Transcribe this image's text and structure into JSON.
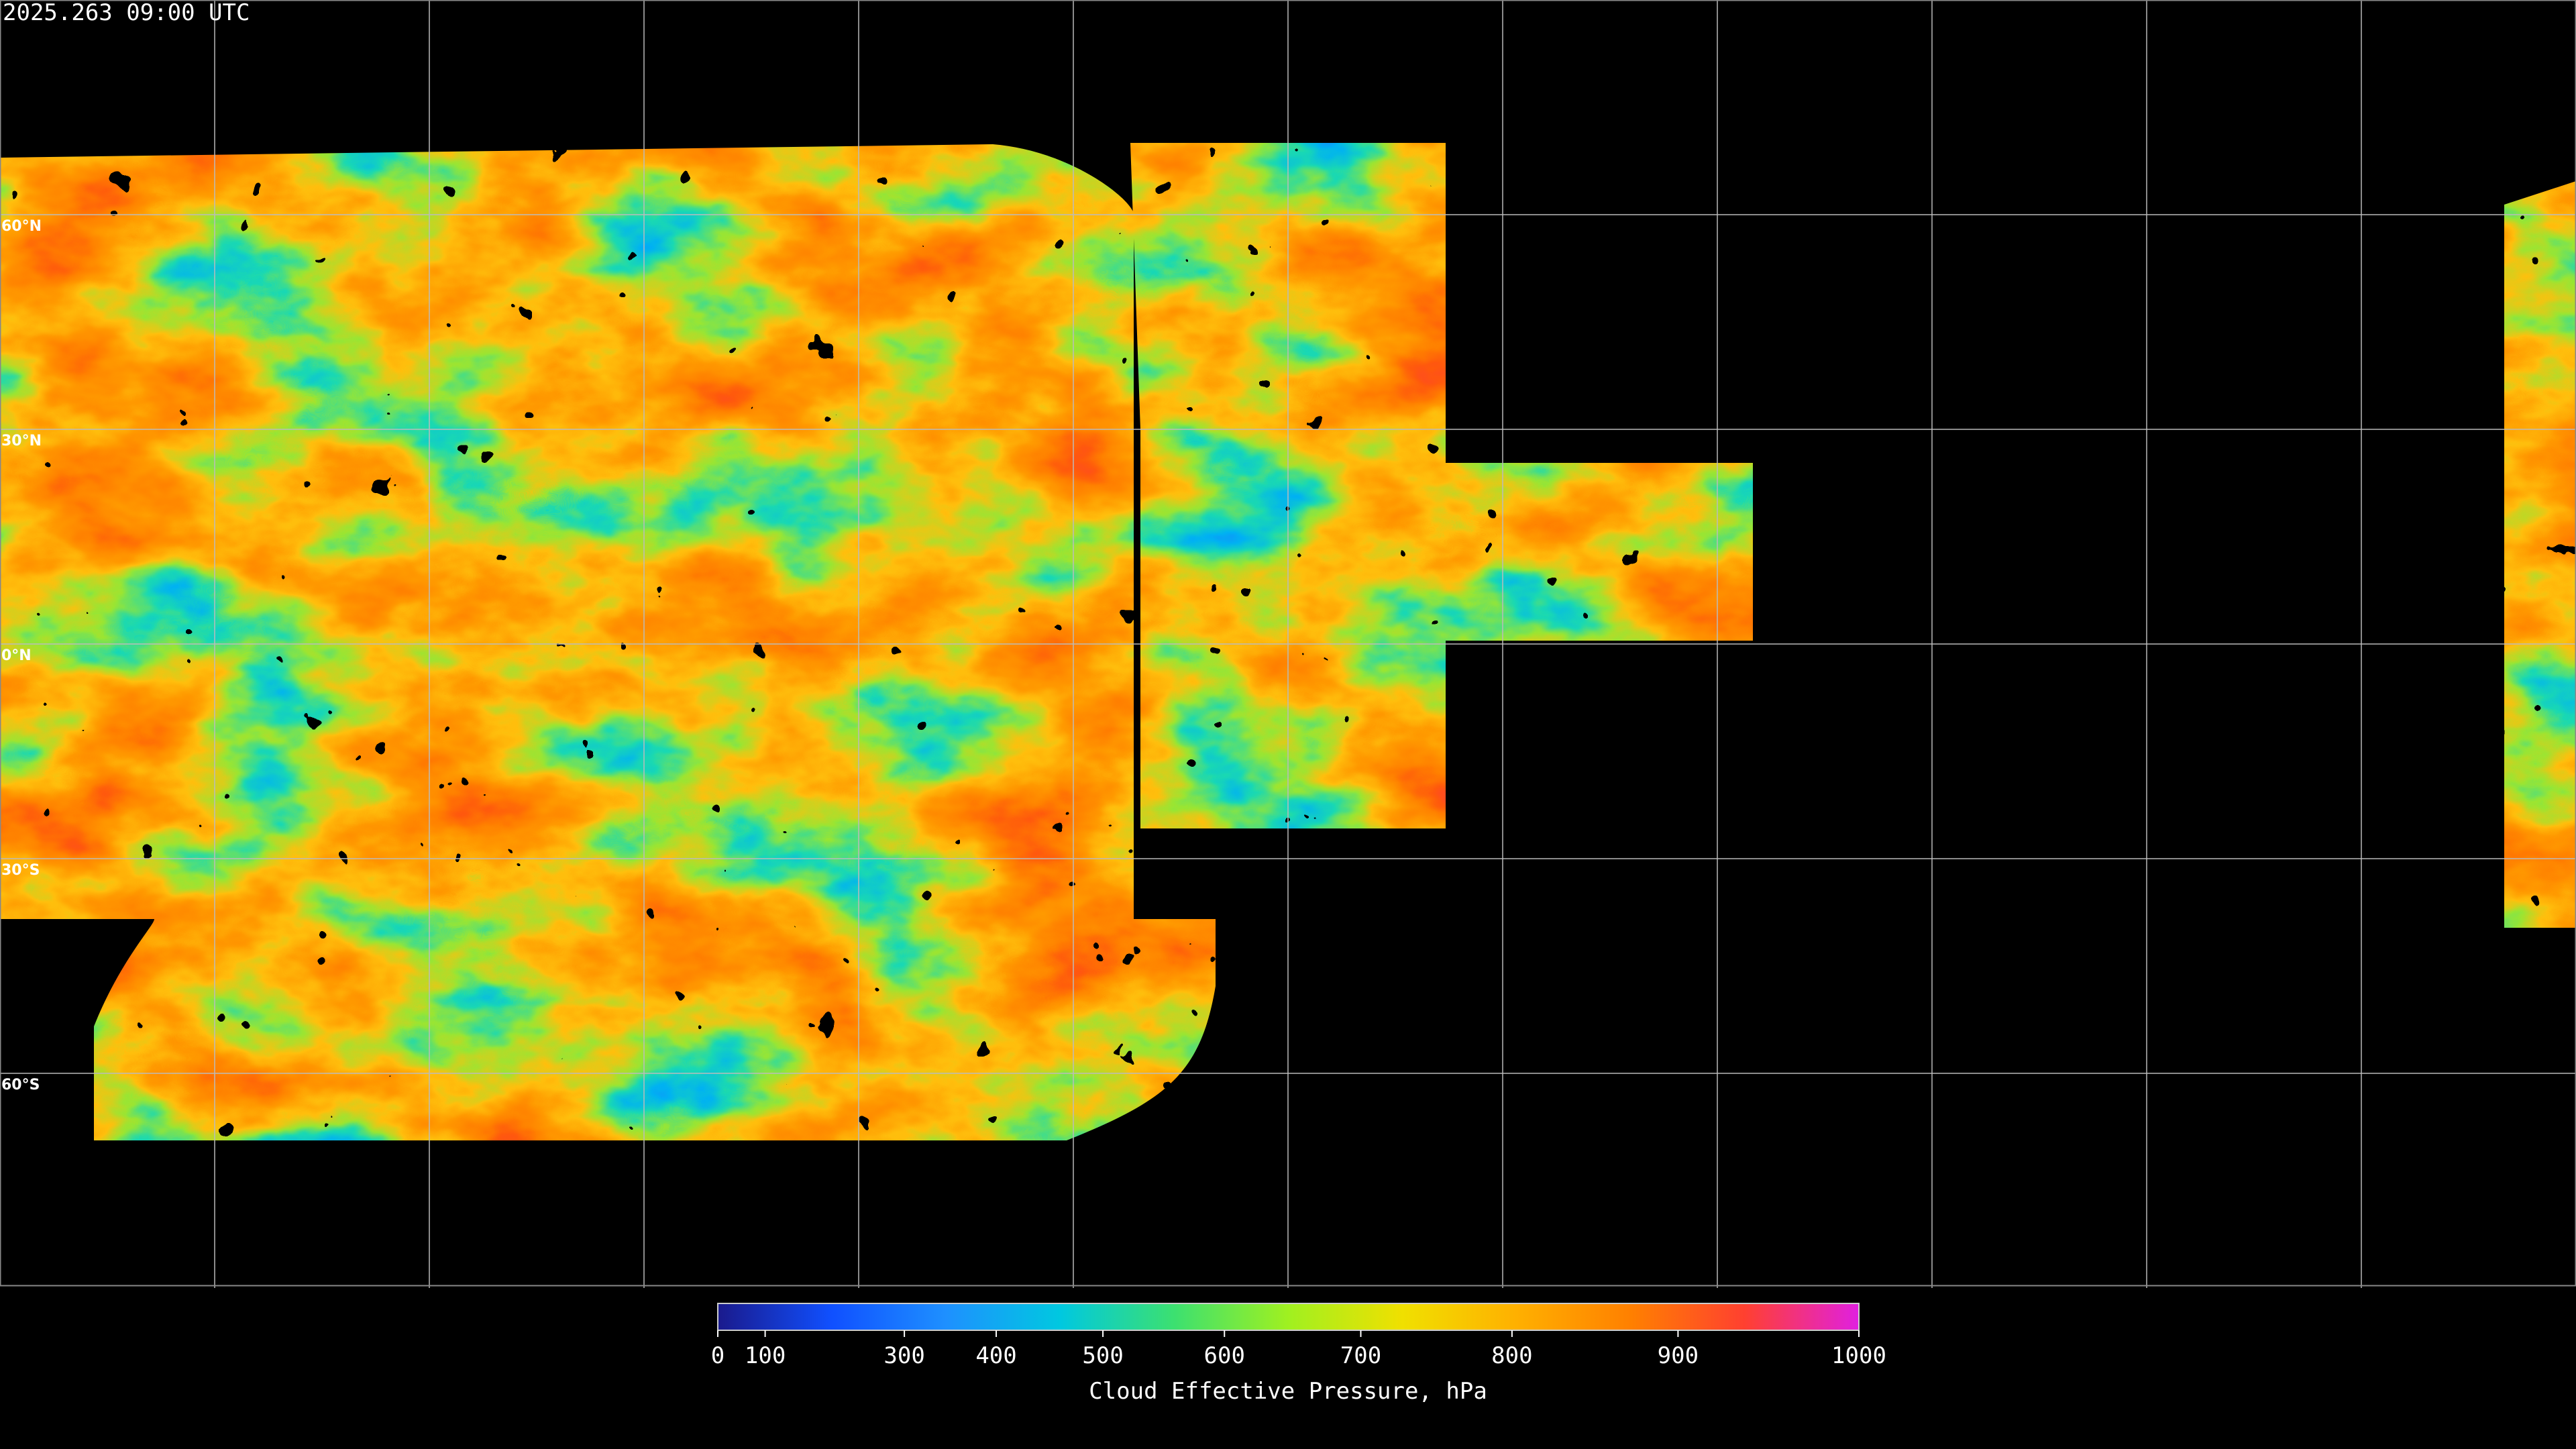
{
  "title": "2025.263 09:00 UTC",
  "lat_lines": [
    {
      "value": 60,
      "label": "60°N"
    },
    {
      "value": 30,
      "label": "30°N"
    },
    {
      "value": 0,
      "label": "0°N"
    },
    {
      "value": -30,
      "label": "30°S"
    },
    {
      "value": -60,
      "label": "60°S"
    }
  ],
  "colorbar": {
    "label": "Cloud Effective Pressure, hPa",
    "lim": [
      0,
      1000
    ],
    "ticks": [
      0,
      100,
      300,
      400,
      500,
      600,
      700,
      800,
      900,
      1000
    ],
    "colormap": [
      "#1a1a8c",
      "#1050ff",
      "#1e90ff",
      "#00c8e0",
      "#3ce070",
      "#a0f020",
      "#f0e000",
      "#ffb000",
      "#ff8000",
      "#ff4030",
      "#e020e0"
    ]
  }
}
